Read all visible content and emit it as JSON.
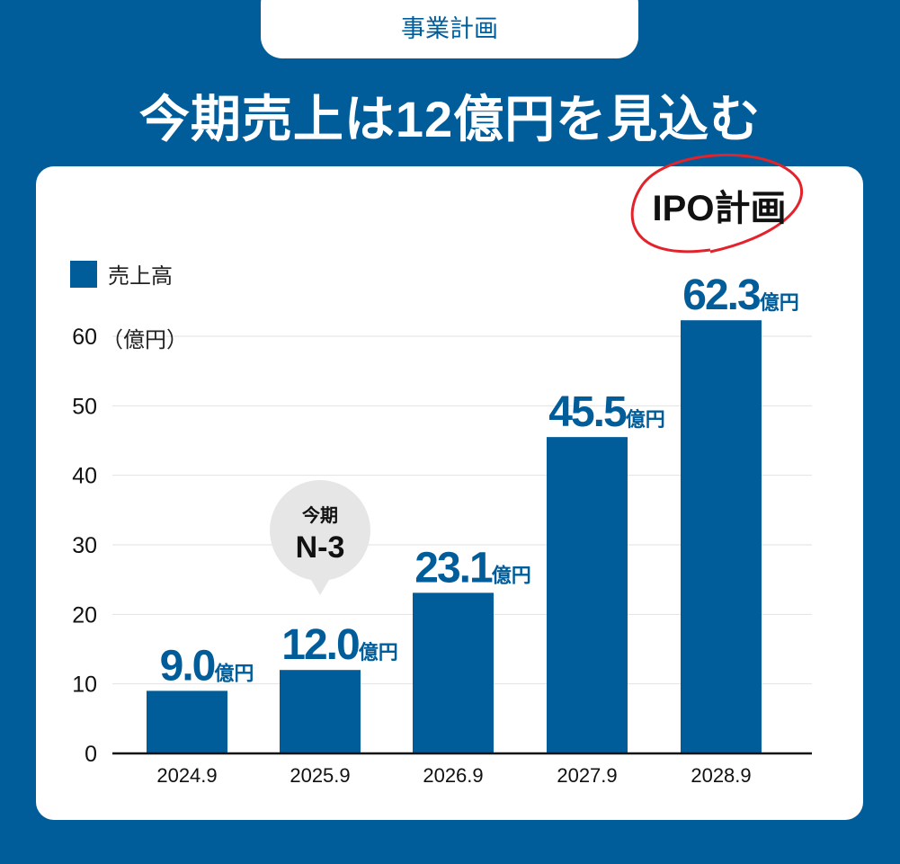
{
  "header": {
    "tab_label": "事業計画",
    "title": "今期売上は12億円を見込む"
  },
  "colors": {
    "background": "#005d9a",
    "bar": "#005d9a",
    "highlight_circle": "#e3232b",
    "callout": "#e6e6e6"
  },
  "chart_data": {
    "type": "bar",
    "title": "今期売上は12億円を見込む",
    "categories": [
      "2024.9",
      "2025.9",
      "2026.9",
      "2027.9",
      "2028.9"
    ],
    "values": [
      9.0,
      12.0,
      23.1,
      45.5,
      62.3
    ],
    "value_labels": [
      "9.0",
      "12.0",
      "23.1",
      "45.5",
      "62.3"
    ],
    "value_unit": "億円",
    "ylabel": "（億円）",
    "ylim": [
      0,
      60
    ],
    "yticks": [
      "0",
      "10",
      "20",
      "30",
      "40",
      "50",
      "60"
    ],
    "grid": true,
    "legend": {
      "label": "売上高",
      "placement": "top-left"
    },
    "annotations": {
      "current_period_top": "今期",
      "current_period_bottom": "N-3",
      "ipo": "IPO計画"
    }
  }
}
